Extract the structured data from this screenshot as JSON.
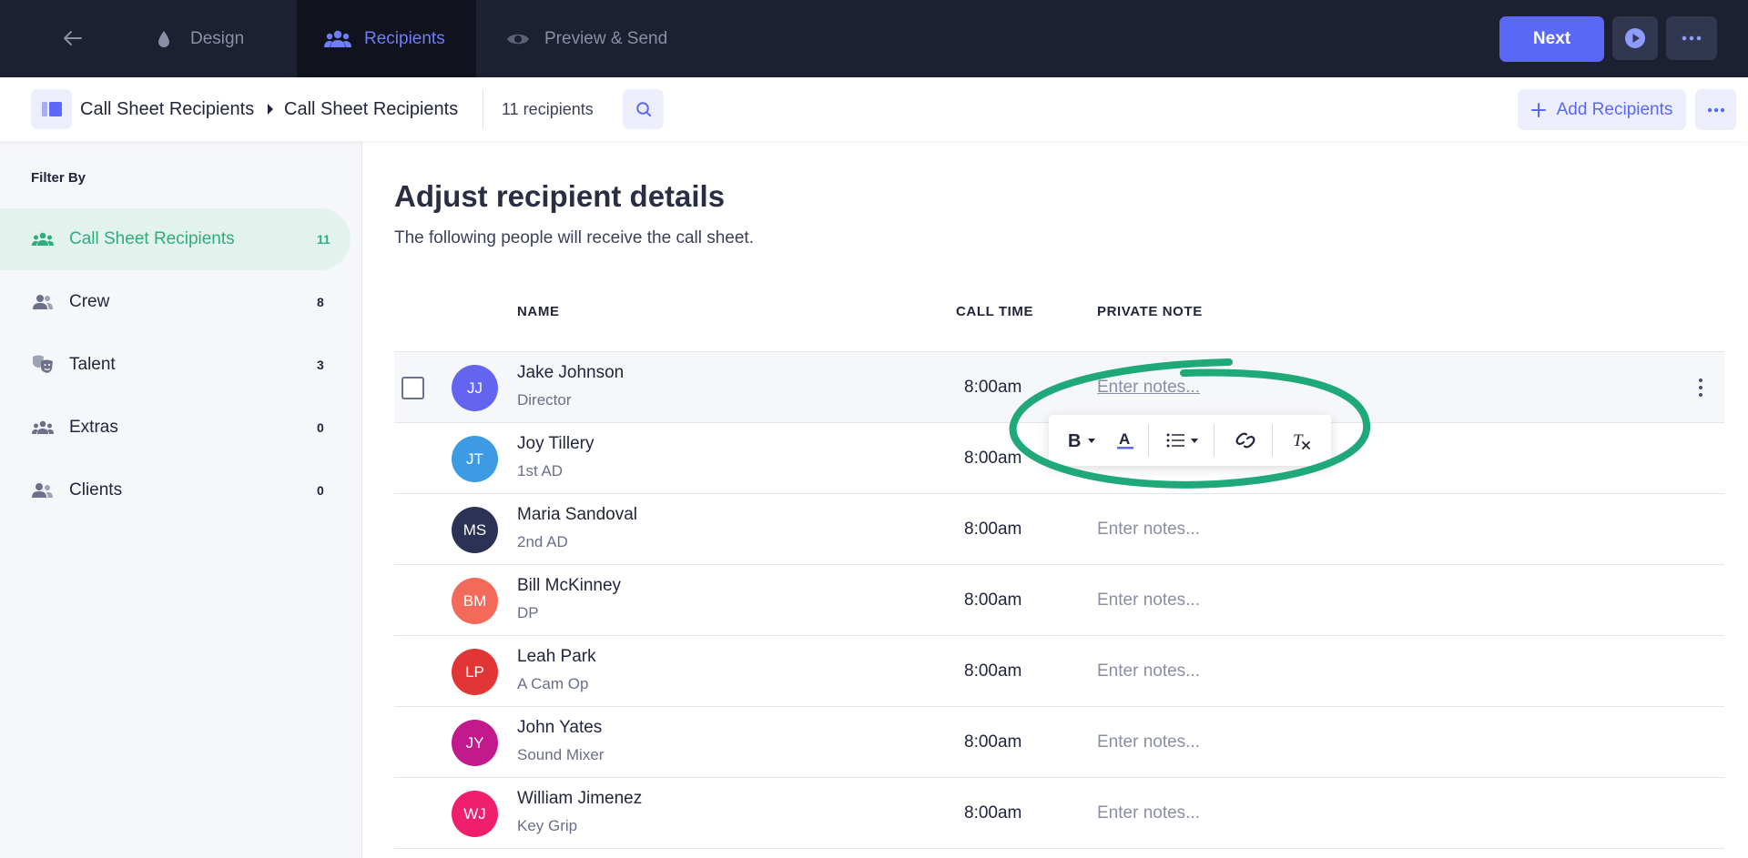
{
  "topbar": {
    "tabs": [
      {
        "label": "Design",
        "icon": "droplet-icon",
        "active": false
      },
      {
        "label": "Recipients",
        "icon": "people-icon",
        "active": true
      },
      {
        "label": "Preview & Send",
        "icon": "eye-icon",
        "active": false
      }
    ],
    "next_label": "Next",
    "back_icon": "arrow-left-icon",
    "play_icon": "play-circle-icon",
    "more_icon": "more-horizontal-icon"
  },
  "subbar": {
    "breadcrumb": [
      "Call Sheet Recipients",
      "Call Sheet Recipients"
    ],
    "recipient_count_text": "11 recipients",
    "add_label": "Add Recipients"
  },
  "sidebar": {
    "title": "Filter By",
    "items": [
      {
        "label": "Call Sheet Recipients",
        "count": "11",
        "icon": "group-icon",
        "active": true
      },
      {
        "label": "Crew",
        "count": "8",
        "icon": "crew-icon",
        "active": false
      },
      {
        "label": "Talent",
        "count": "3",
        "icon": "theater-masks-icon",
        "active": false
      },
      {
        "label": "Extras",
        "count": "0",
        "icon": "group-icon",
        "active": false
      },
      {
        "label": "Clients",
        "count": "0",
        "icon": "clients-icon",
        "active": false
      }
    ]
  },
  "main": {
    "title": "Adjust recipient details",
    "subtitle": "The following people will receive the call sheet.",
    "columns": {
      "name": "NAME",
      "call_time": "CALL TIME",
      "private_note": "PRIVATE NOTE"
    },
    "rows": [
      {
        "initials": "JJ",
        "name": "Jake Johnson",
        "role": "Director",
        "call_time": "8:00am",
        "note_placeholder": "Enter notes...",
        "avatar_color": "#6364f0"
      },
      {
        "initials": "JT",
        "name": "Joy Tillery",
        "role": "1st AD",
        "call_time": "8:00am",
        "note_placeholder": "",
        "avatar_color": "#3d9be3"
      },
      {
        "initials": "MS",
        "name": "Maria Sandoval",
        "role": "2nd AD",
        "call_time": "8:00am",
        "note_placeholder": "Enter notes...",
        "avatar_color": "#2c3256"
      },
      {
        "initials": "BM",
        "name": "Bill McKinney",
        "role": "DP",
        "call_time": "8:00am",
        "note_placeholder": "Enter notes...",
        "avatar_color": "#f3695a"
      },
      {
        "initials": "LP",
        "name": "Leah Park",
        "role": "A Cam Op",
        "call_time": "8:00am",
        "note_placeholder": "Enter notes...",
        "avatar_color": "#e23636"
      },
      {
        "initials": "JY",
        "name": "John Yates",
        "role": "Sound Mixer",
        "call_time": "8:00am",
        "note_placeholder": "Enter notes...",
        "avatar_color": "#c2198c"
      },
      {
        "initials": "WJ",
        "name": "William Jimenez",
        "role": "Key Grip",
        "call_time": "8:00am",
        "note_placeholder": "Enter notes...",
        "avatar_color": "#ef1f6d"
      }
    ]
  },
  "format_toolbar": {
    "buttons": [
      "bold-icon",
      "text-color-icon",
      "list-icon",
      "link-icon",
      "clear-format-icon"
    ],
    "highlight_color": "#1fa878"
  },
  "colors": {
    "accent": "#5a68f5",
    "topbar_bg": "#1d2031",
    "success_green": "#2fae7c"
  }
}
